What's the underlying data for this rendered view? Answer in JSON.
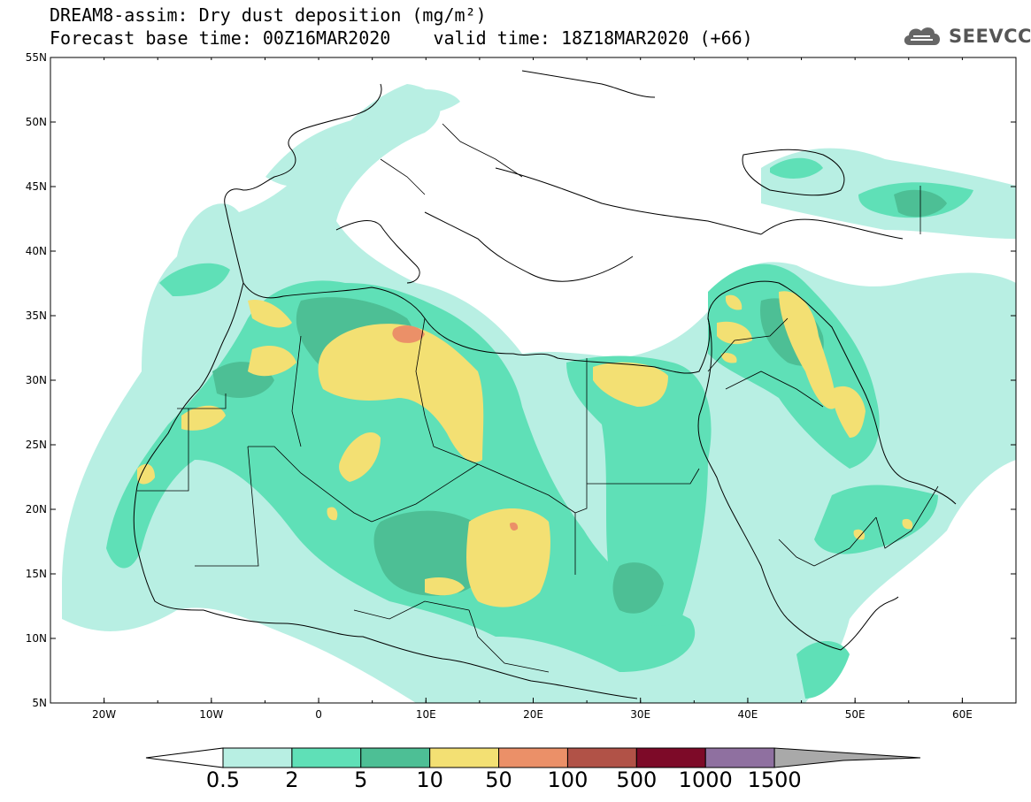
{
  "header": {
    "title_line1": "DREAM8-assim: Dry dust deposition (mg/m²)",
    "title_line2": "Forecast base time: 00Z16MAR2020    valid time: 18Z18MAR2020 (+66)",
    "logo_text": "SEEVCCC"
  },
  "map": {
    "lon_ticks": [
      "20W",
      "10W",
      "0",
      "10E",
      "20E",
      "30E",
      "40E",
      "50E",
      "60E"
    ],
    "lat_ticks": [
      "55N",
      "50N",
      "45N",
      "40N",
      "35N",
      "30N",
      "25N",
      "20N",
      "15N",
      "10N",
      "5N"
    ],
    "lon_range": [
      -25,
      65
    ],
    "lat_range": [
      5,
      55
    ],
    "background": "#ffffff",
    "coastline_color": "#000000"
  },
  "colorbar": {
    "labels": [
      "0.5",
      "2",
      "5",
      "10",
      "50",
      "100",
      "500",
      "1000",
      "1500"
    ],
    "colors": [
      "#b8efe3",
      "#5fe0b7",
      "#4dbf95",
      "#f3e073",
      "#eb9068",
      "#b15247",
      "#7d0a28",
      "#8f70a0",
      "#a9a9a9"
    ],
    "under_color": "#ffffff"
  }
}
